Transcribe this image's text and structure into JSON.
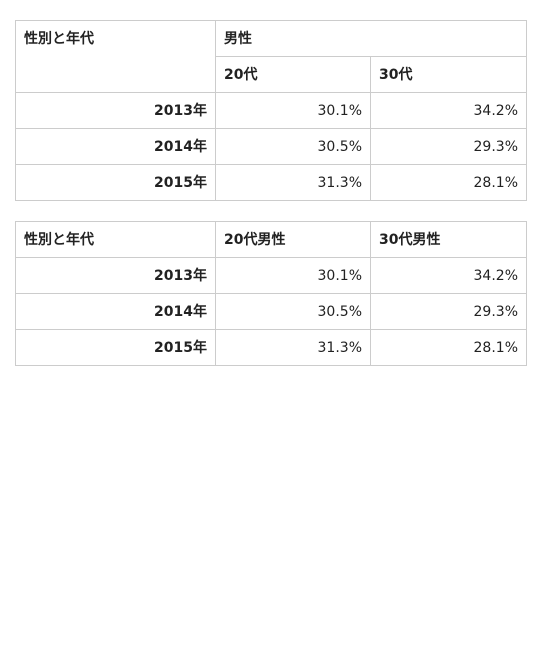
{
  "table1": {
    "corner": "性別と年代",
    "group_header": "男性",
    "sub_headers": [
      "20代",
      "30代"
    ],
    "rows": [
      {
        "label": "2013年",
        "values": [
          "30.1%",
          "34.2%"
        ]
      },
      {
        "label": "2014年",
        "values": [
          "30.5%",
          "29.3%"
        ]
      },
      {
        "label": "2015年",
        "values": [
          "31.3%",
          "28.1%"
        ]
      }
    ]
  },
  "table2": {
    "corner": "性別と年代",
    "headers": [
      "20代男性",
      "30代男性"
    ],
    "rows": [
      {
        "label": "2013年",
        "values": [
          "30.1%",
          "34.2%"
        ]
      },
      {
        "label": "2014年",
        "values": [
          "30.5%",
          "29.3%"
        ]
      },
      {
        "label": "2015年",
        "values": [
          "31.3%",
          "28.1%"
        ]
      }
    ]
  }
}
